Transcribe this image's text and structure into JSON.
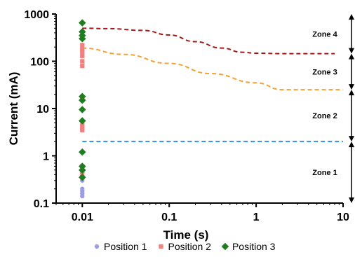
{
  "chart_data": {
    "type": "scatter",
    "xlabel": "Time (s)",
    "ylabel": "Current (mA)",
    "x_scale": "log",
    "y_scale": "log",
    "xlim": [
      0.005,
      10
    ],
    "ylim": [
      0.1,
      1000
    ],
    "x_ticks": [
      0.01,
      0.1,
      1,
      10
    ],
    "x_tick_labels": [
      "0.01",
      "0.1",
      "1",
      "10"
    ],
    "y_ticks": [
      0.1,
      1,
      10,
      100,
      1000
    ],
    "y_tick_labels": [
      "0.1",
      "1",
      "10",
      "100",
      "1000"
    ],
    "grid": false,
    "legend_position": "bottom",
    "series": [
      {
        "name": "Position 1",
        "marker": "circle",
        "color": "#9b9be8",
        "x": [
          0.01,
          0.01,
          0.01,
          0.01,
          0.01,
          0.01,
          0.01,
          0.01,
          0.01,
          0.01
        ],
        "y": [
          0.14,
          0.16,
          0.18,
          0.2,
          0.3,
          0.38,
          0.45,
          0.5,
          0.55,
          0.6
        ]
      },
      {
        "name": "Position 2",
        "marker": "square",
        "color": "#f08080",
        "x": [
          0.01,
          0.01,
          0.01,
          0.01,
          0.01,
          0.01,
          0.01,
          0.01,
          0.01,
          0.01,
          0.01,
          0.01,
          0.01
        ],
        "y": [
          0.35,
          0.45,
          0.6,
          3.5,
          4,
          4.5,
          15,
          80,
          100,
          130,
          160,
          180,
          220
        ]
      },
      {
        "name": "Position 3",
        "marker": "diamond",
        "color": "#1e7d1e",
        "x": [
          0.01,
          0.01,
          0.01,
          0.01,
          0.01,
          0.01,
          0.01,
          0.01,
          0.01,
          0.01,
          0.01,
          0.01
        ],
        "y": [
          0.35,
          0.5,
          0.6,
          1.2,
          5.5,
          9.5,
          15,
          18,
          300,
          350,
          420,
          650
        ]
      }
    ],
    "threshold_lines": [
      {
        "color": "#3a8be8",
        "x": [
          0.01,
          10
        ],
        "y": [
          2,
          2
        ]
      },
      {
        "color": "#f5a033",
        "x": [
          0.01,
          0.03,
          0.1,
          0.3,
          1,
          2,
          10
        ],
        "y": [
          190,
          140,
          90,
          55,
          35,
          25,
          25
        ]
      },
      {
        "color": "#a01818",
        "x": [
          0.01,
          0.02,
          0.05,
          0.1,
          0.2,
          0.4,
          0.7,
          1,
          2,
          5,
          8
        ],
        "y": [
          500,
          490,
          450,
          360,
          260,
          190,
          155,
          148,
          145,
          145,
          145
        ]
      }
    ],
    "zones": [
      {
        "label": "Zone 1",
        "range": [
          0.1,
          2
        ]
      },
      {
        "label": "Zone 2",
        "range": [
          2,
          25
        ]
      },
      {
        "label": "Zone 3",
        "range": [
          25,
          145
        ]
      },
      {
        "label": "Zone 4",
        "range": [
          145,
          1000
        ]
      }
    ]
  }
}
